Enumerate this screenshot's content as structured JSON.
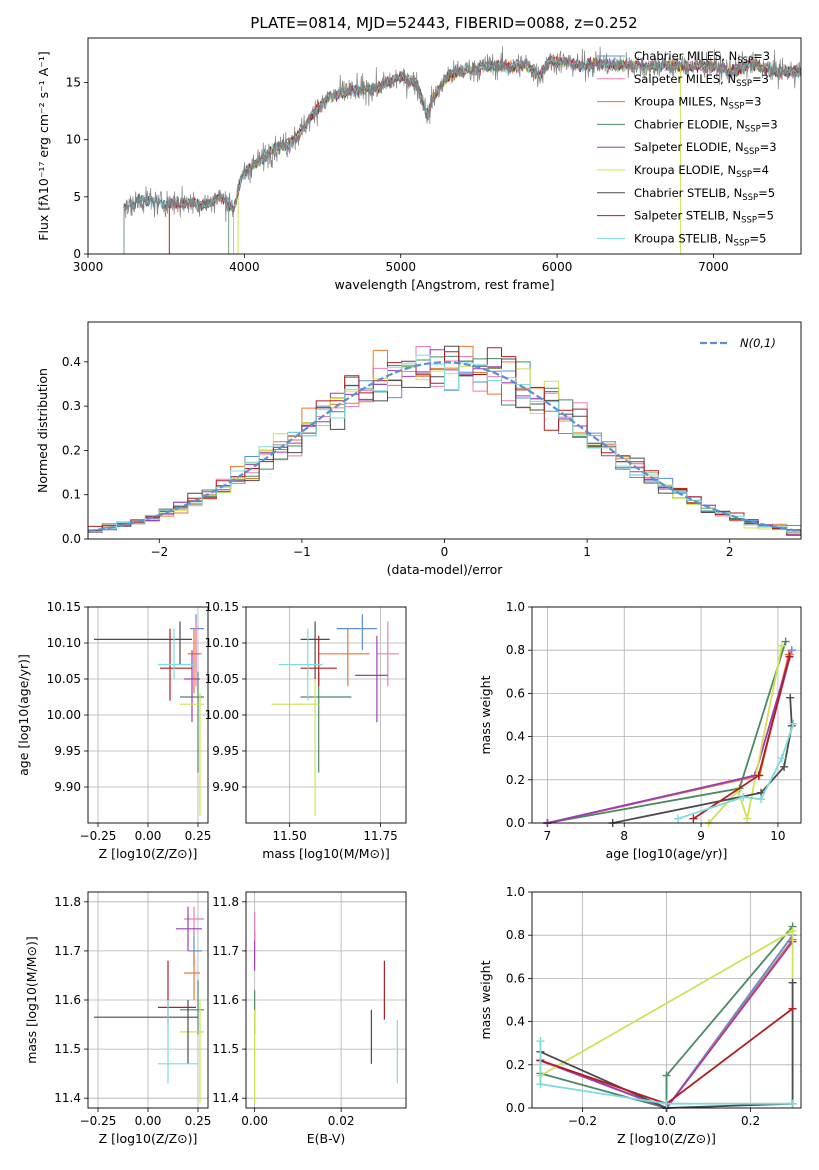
{
  "colors": {
    "Chabrier MILES": "#5b8fd6",
    "Salpeter MILES": "#e87fb6",
    "Kroupa MILES": "#e8772e",
    "Chabrier ELODIE": "#4a8a64",
    "Salpeter ELODIE": "#9f3bb5",
    "Kroupa ELODIE": "#d2e054",
    "Chabrier STELIB": "#4c4c4c",
    "Salpeter STELIB": "#b01e24",
    "Kroupa STELIB": "#7fdcdc",
    "normal": "#5b8fd6",
    "spectrum": "#808080"
  },
  "chart_data": [
    {
      "id": "spectrum",
      "type": "line",
      "title": "PLATE=0814, MJD=52443, FIBERID=0088, z=0.252",
      "xlabel": "wavelength [Angstrom, rest frame]",
      "ylabel": "Flux [fλ10⁻¹⁷ erg cm⁻² s⁻¹ A⁻¹]",
      "xlim": [
        3000,
        7560
      ],
      "ylim": [
        0,
        18.9
      ],
      "xticks": [
        3000,
        4000,
        5000,
        6000,
        7000
      ],
      "yticks": [
        0,
        5,
        10,
        15
      ],
      "grid": false,
      "legend_position": "top-right",
      "continuum": [
        [
          3240,
          4.0
        ],
        [
          3350,
          4.8
        ],
        [
          3450,
          4.4
        ],
        [
          3550,
          4.5
        ],
        [
          3650,
          4.5
        ],
        [
          3750,
          4.3
        ],
        [
          3850,
          5.0
        ],
        [
          3930,
          4.0
        ],
        [
          3990,
          7.0
        ],
        [
          4100,
          8.2
        ],
        [
          4200,
          9.3
        ],
        [
          4280,
          9.6
        ],
        [
          4350,
          10.5
        ],
        [
          4450,
          12.5
        ],
        [
          4550,
          13.8
        ],
        [
          4650,
          14.2
        ],
        [
          4750,
          14.4
        ],
        [
          4860,
          14.6
        ],
        [
          5000,
          15.5
        ],
        [
          5100,
          15.0
        ],
        [
          5175,
          12.0
        ],
        [
          5200,
          13.5
        ],
        [
          5300,
          15.6
        ],
        [
          5400,
          16.0
        ],
        [
          5500,
          16.3
        ],
        [
          5600,
          16.5
        ],
        [
          5700,
          16.4
        ],
        [
          5800,
          16.6
        ],
        [
          5890,
          15.6
        ],
        [
          5950,
          16.9
        ],
        [
          6050,
          16.8
        ],
        [
          6150,
          16.5
        ],
        [
          6250,
          16.7
        ],
        [
          6350,
          16.5
        ],
        [
          6450,
          16.6
        ],
        [
          6563,
          16.4
        ],
        [
          6700,
          16.5
        ],
        [
          6850,
          16.4
        ],
        [
          7000,
          16.5
        ],
        [
          7100,
          16.0
        ],
        [
          7250,
          16.6
        ],
        [
          7400,
          16.0
        ],
        [
          7560,
          16.0
        ]
      ],
      "series": [
        {
          "name": "Chabrier MILES, N_SSP=3",
          "start": 3230
        },
        {
          "name": "Salpeter MILES, N_SSP=3",
          "start": 3520
        },
        {
          "name": "Kroupa MILES, N_SSP=3",
          "start": 3520
        },
        {
          "name": "Chabrier ELODIE, N_SSP=3",
          "start": 3900
        },
        {
          "name": "Salpeter ELODIE, N_SSP=3",
          "start": 3930
        },
        {
          "name": "Kroupa ELODIE, N_SSP=4",
          "start": 3930
        },
        {
          "name": "Chabrier STELIB, N_SSP=5",
          "start": 3230
        },
        {
          "name": "Salpeter STELIB, N_SSP=5",
          "start": 3520
        },
        {
          "name": "Kroupa STELIB, N_SSP=5",
          "start": 3230
        }
      ]
    },
    {
      "id": "residuals",
      "type": "line",
      "xlabel": "(data-model)/error",
      "ylabel": "Normed distribution",
      "xlim": [
        -2.5,
        2.5
      ],
      "ylim": [
        0,
        0.49
      ],
      "xticks": [
        -2,
        -1,
        0,
        1,
        2
      ],
      "yticks": [
        0.0,
        0.1,
        0.2,
        0.3,
        0.4
      ],
      "grid": true,
      "legend_position": "top-right",
      "series_name": "N(0,1)",
      "bin_width": 0.1
    },
    {
      "id": "age_vs_Z",
      "type": "scatter",
      "xlabel": "Z [log10(Z/Z⊙)]",
      "ylabel": "age  [log10(age/yr)]",
      "xlim": [
        -0.3,
        0.3
      ],
      "ylim": [
        9.85,
        10.15
      ],
      "xticks": [
        -0.25,
        0.0,
        0.25
      ],
      "yticks": [
        9.9,
        9.95,
        10.0,
        10.05,
        10.1,
        10.15
      ],
      "points": [
        {
          "model": "Chabrier MILES",
          "x": 0.24,
          "y": 10.12,
          "ex": [
            0.21,
            0.28
          ],
          "ey": [
            10.06,
            10.14
          ]
        },
        {
          "model": "Salpeter MILES",
          "x": 0.24,
          "y": 10.085,
          "ex": [
            0.22,
            0.27
          ],
          "ey": [
            10.04,
            10.13
          ]
        },
        {
          "model": "Kroupa MILES",
          "x": 0.23,
          "y": 10.085,
          "ex": [
            0.2,
            0.26
          ],
          "ey": [
            10.03,
            10.12
          ]
        },
        {
          "model": "Chabrier ELODIE",
          "x": 0.25,
          "y": 10.025,
          "ex": [
            0.16,
            0.28
          ],
          "ey": [
            9.92,
            10.06
          ]
        },
        {
          "model": "Salpeter ELODIE",
          "x": 0.22,
          "y": 10.05,
          "ex": [
            0.18,
            0.26
          ],
          "ey": [
            9.99,
            10.09
          ]
        },
        {
          "model": "Kroupa ELODIE",
          "x": 0.26,
          "y": 10.015,
          "ex": [
            0.16,
            0.28
          ],
          "ey": [
            9.86,
            10.03
          ]
        },
        {
          "model": "Chabrier STELIB",
          "x": 0.16,
          "y": 10.105,
          "ex": [
            -0.27,
            0.22
          ],
          "ey": [
            10.07,
            10.13
          ]
        },
        {
          "model": "Salpeter STELIB",
          "x": 0.11,
          "y": 10.065,
          "ex": [
            0.06,
            0.22
          ],
          "ey": [
            10.02,
            10.12
          ]
        },
        {
          "model": "Kroupa STELIB",
          "x": 0.13,
          "y": 10.07,
          "ex": [
            0.05,
            0.24
          ],
          "ey": [
            10.05,
            10.12
          ]
        }
      ]
    },
    {
      "id": "age_vs_mass",
      "type": "scatter",
      "xlabel": "mass [log10(M/M⊙)]",
      "ylabel": "",
      "xlim": [
        11.38,
        11.82
      ],
      "ylim": [
        9.85,
        10.15
      ],
      "xticks": [
        11.5,
        11.75
      ],
      "yticks": [
        9.9,
        9.95,
        10.0,
        10.05,
        10.1,
        10.15
      ],
      "points": [
        {
          "model": "Chabrier MILES",
          "x": 11.7,
          "y": 10.12,
          "ex": [
            11.63,
            11.74
          ],
          "ey": [
            10.09,
            10.14
          ]
        },
        {
          "model": "Salpeter MILES",
          "x": 11.77,
          "y": 10.085,
          "ex": [
            11.74,
            11.8
          ],
          "ey": [
            10.04,
            10.13
          ]
        },
        {
          "model": "Kroupa MILES",
          "x": 11.66,
          "y": 10.085,
          "ex": [
            11.58,
            11.72
          ],
          "ey": [
            10.04,
            10.12
          ]
        },
        {
          "model": "Chabrier ELODIE",
          "x": 11.58,
          "y": 10.025,
          "ex": [
            11.53,
            11.67
          ],
          "ey": [
            9.92,
            10.06
          ]
        },
        {
          "model": "Salpeter ELODIE",
          "x": 11.74,
          "y": 10.055,
          "ex": [
            11.68,
            11.77
          ],
          "ey": [
            9.99,
            10.11
          ]
        },
        {
          "model": "Kroupa ELODIE",
          "x": 11.57,
          "y": 10.015,
          "ex": [
            11.45,
            11.58
          ],
          "ey": [
            9.86,
            10.05
          ]
        },
        {
          "model": "Chabrier STELIB",
          "x": 11.57,
          "y": 10.105,
          "ex": [
            11.53,
            11.61
          ],
          "ey": [
            10.05,
            10.13
          ]
        },
        {
          "model": "Salpeter STELIB",
          "x": 11.58,
          "y": 10.065,
          "ex": [
            11.53,
            11.63
          ],
          "ey": [
            10.04,
            10.11
          ]
        },
        {
          "model": "Kroupa STELIB",
          "x": 11.55,
          "y": 10.07,
          "ex": [
            11.47,
            11.59
          ],
          "ey": [
            10.02,
            10.12
          ]
        }
      ]
    },
    {
      "id": "mass_weight_vs_age",
      "type": "line",
      "xlabel": "age  [log10(age/yr)]",
      "ylabel": "mass weight",
      "xlim": [
        6.8,
        10.3
      ],
      "ylim": [
        0,
        1.0
      ],
      "xticks": [
        7,
        8,
        9,
        10
      ],
      "yticks": [
        0.0,
        0.2,
        0.4,
        0.6,
        0.8,
        1.0
      ],
      "grid": true,
      "series": [
        {
          "model": "Chabrier MILES",
          "x": [
            7.0,
            9.75,
            10.18
          ],
          "y": [
            0.0,
            0.22,
            0.8
          ]
        },
        {
          "model": "Salpeter MILES",
          "x": [
            7.0,
            9.75,
            10.16
          ],
          "y": [
            0.0,
            0.22,
            0.78
          ]
        },
        {
          "model": "Kroupa MILES",
          "x": [
            7.0,
            9.76,
            10.14
          ],
          "y": [
            0.0,
            0.22,
            0.78
          ]
        },
        {
          "model": "Chabrier ELODIE",
          "x": [
            7.0,
            9.5,
            10.1
          ],
          "y": [
            0.0,
            0.16,
            0.84
          ]
        },
        {
          "model": "Salpeter ELODIE",
          "x": [
            7.0,
            9.7,
            10.15
          ],
          "y": [
            0.0,
            0.22,
            0.77
          ]
        },
        {
          "model": "Kroupa ELODIE",
          "x": [
            9.1,
            9.48,
            9.6,
            10.05
          ],
          "y": [
            0.0,
            0.15,
            0.02,
            0.82
          ]
        },
        {
          "model": "Chabrier STELIB",
          "x": [
            7.85,
            9.78,
            10.08,
            10.18,
            10.16
          ],
          "y": [
            0.0,
            0.14,
            0.26,
            0.45,
            0.58
          ]
        },
        {
          "model": "Salpeter STELIB",
          "x": [
            8.9,
            9.75,
            10.15
          ],
          "y": [
            0.02,
            0.22,
            0.77
          ]
        },
        {
          "model": "Kroupa STELIB",
          "x": [
            8.7,
            9.55,
            9.78,
            10.05,
            10.2
          ],
          "y": [
            0.02,
            0.12,
            0.11,
            0.3,
            0.46
          ]
        }
      ]
    },
    {
      "id": "mass_vs_Z",
      "type": "scatter",
      "xlabel": "Z [log10(Z/Z⊙)]",
      "ylabel": "mass [log10(M/M⊙)]",
      "xlim": [
        -0.3,
        0.3
      ],
      "ylim": [
        11.38,
        11.82
      ],
      "xticks": [
        -0.25,
        0.0,
        0.25
      ],
      "yticks": [
        11.4,
        11.5,
        11.6,
        11.7,
        11.8
      ],
      "points": [
        {
          "model": "Chabrier MILES",
          "x": 0.23,
          "y": 11.7,
          "ex": [
            0.2,
            0.27
          ],
          "ey": [
            11.67,
            11.74
          ]
        },
        {
          "model": "Salpeter MILES",
          "x": 0.23,
          "y": 11.765,
          "ex": [
            0.18,
            0.28
          ],
          "ey": [
            11.73,
            11.79
          ]
        },
        {
          "model": "Kroupa MILES",
          "x": 0.23,
          "y": 11.655,
          "ex": [
            0.18,
            0.26
          ],
          "ey": [
            11.6,
            11.7
          ]
        },
        {
          "model": "Chabrier ELODIE",
          "x": 0.25,
          "y": 11.58,
          "ex": [
            0.16,
            0.28
          ],
          "ey": [
            11.53,
            11.64
          ]
        },
        {
          "model": "Salpeter ELODIE",
          "x": 0.2,
          "y": 11.745,
          "ex": [
            0.14,
            0.27
          ],
          "ey": [
            11.7,
            11.79
          ]
        },
        {
          "model": "Kroupa ELODIE",
          "x": 0.26,
          "y": 11.535,
          "ex": [
            0.16,
            0.28
          ],
          "ey": [
            11.39,
            11.6
          ]
        },
        {
          "model": "Chabrier STELIB",
          "x": 0.2,
          "y": 11.565,
          "ex": [
            -0.27,
            0.25
          ],
          "ey": [
            11.47,
            11.6
          ]
        },
        {
          "model": "Salpeter STELIB",
          "x": 0.1,
          "y": 11.585,
          "ex": [
            0.05,
            0.24
          ],
          "ey": [
            11.55,
            11.68
          ]
        },
        {
          "model": "Kroupa STELIB",
          "x": 0.1,
          "y": 11.47,
          "ex": [
            0.05,
            0.25
          ],
          "ey": [
            11.43,
            11.6
          ]
        }
      ]
    },
    {
      "id": "mass_vs_ebv",
      "type": "scatter",
      "xlabel": "E(B-V)",
      "ylabel": "",
      "xlim": [
        -0.002,
        0.035
      ],
      "ylim": [
        11.38,
        11.82
      ],
      "xticks": [
        0.0,
        0.02
      ],
      "yticks": [
        11.4,
        11.5,
        11.6,
        11.7,
        11.8
      ],
      "points": [
        {
          "model": "Salpeter ELODIE",
          "x": 0.0,
          "y": 11.7,
          "ey": [
            11.66,
            11.74
          ]
        },
        {
          "model": "Salpeter MILES",
          "x": 0.0,
          "y": 11.75,
          "ey": [
            11.72,
            11.78
          ]
        },
        {
          "model": "Chabrier ELODIE",
          "x": 0.0,
          "y": 11.58,
          "ey": [
            11.53,
            11.62
          ]
        },
        {
          "model": "Kroupa ELODIE",
          "x": 0.0,
          "y": 11.53,
          "ey": [
            11.39,
            11.58
          ]
        },
        {
          "model": "Chabrier STELIB",
          "x": 0.027,
          "y": 11.53,
          "ey": [
            11.47,
            11.58
          ]
        },
        {
          "model": "Salpeter STELIB",
          "x": 0.03,
          "y": 11.61,
          "ey": [
            11.56,
            11.68
          ]
        },
        {
          "model": "Kroupa STELIB",
          "x": 0.033,
          "y": 11.5,
          "ey": [
            11.43,
            11.56
          ]
        }
      ]
    },
    {
      "id": "mass_weight_vs_Z",
      "type": "line",
      "xlabel": "Z [log10(Z/Z⊙)]",
      "ylabel": "mass weight",
      "xlim": [
        -0.32,
        0.32
      ],
      "ylim": [
        0,
        1.0
      ],
      "xticks": [
        -0.2,
        0.0,
        0.2
      ],
      "yticks": [
        0.0,
        0.2,
        0.4,
        0.6,
        0.8,
        1.0
      ],
      "grid": true,
      "series": [
        {
          "model": "Chabrier MILES",
          "x": [
            -0.3,
            0.0,
            0.3
          ],
          "y": [
            0.22,
            0.0,
            0.8
          ]
        },
        {
          "model": "Salpeter MILES",
          "x": [
            -0.3,
            0.0,
            0.3
          ],
          "y": [
            0.22,
            0.0,
            0.78
          ]
        },
        {
          "model": "Kroupa MILES",
          "x": [
            -0.3,
            0.0,
            0.3
          ],
          "y": [
            0.22,
            0.0,
            0.78
          ]
        },
        {
          "model": "Chabrier ELODIE",
          "x": [
            -0.3,
            0.0,
            0.0,
            0.3
          ],
          "y": [
            0.16,
            0.0,
            0.15,
            0.84
          ]
        },
        {
          "model": "Salpeter ELODIE",
          "x": [
            -0.3,
            0.0,
            0.3
          ],
          "y": [
            0.22,
            0.0,
            0.77
          ]
        },
        {
          "model": "Kroupa ELODIE",
          "x": [
            -0.3,
            0.3,
            0.3
          ],
          "y": [
            0.15,
            0.82,
            0.02
          ]
        },
        {
          "model": "Chabrier STELIB",
          "x": [
            -0.3,
            0.0,
            0.3,
            0.3
          ],
          "y": [
            0.26,
            0.0,
            0.02,
            0.58
          ]
        },
        {
          "model": "Salpeter STELIB",
          "x": [
            -0.3,
            0.0,
            0.3
          ],
          "y": [
            0.22,
            0.02,
            0.46
          ]
        },
        {
          "model": "Kroupa STELIB",
          "x": [
            -0.3,
            -0.3,
            0.0,
            0.3
          ],
          "y": [
            0.31,
            0.11,
            0.02,
            0.02
          ]
        }
      ]
    }
  ]
}
